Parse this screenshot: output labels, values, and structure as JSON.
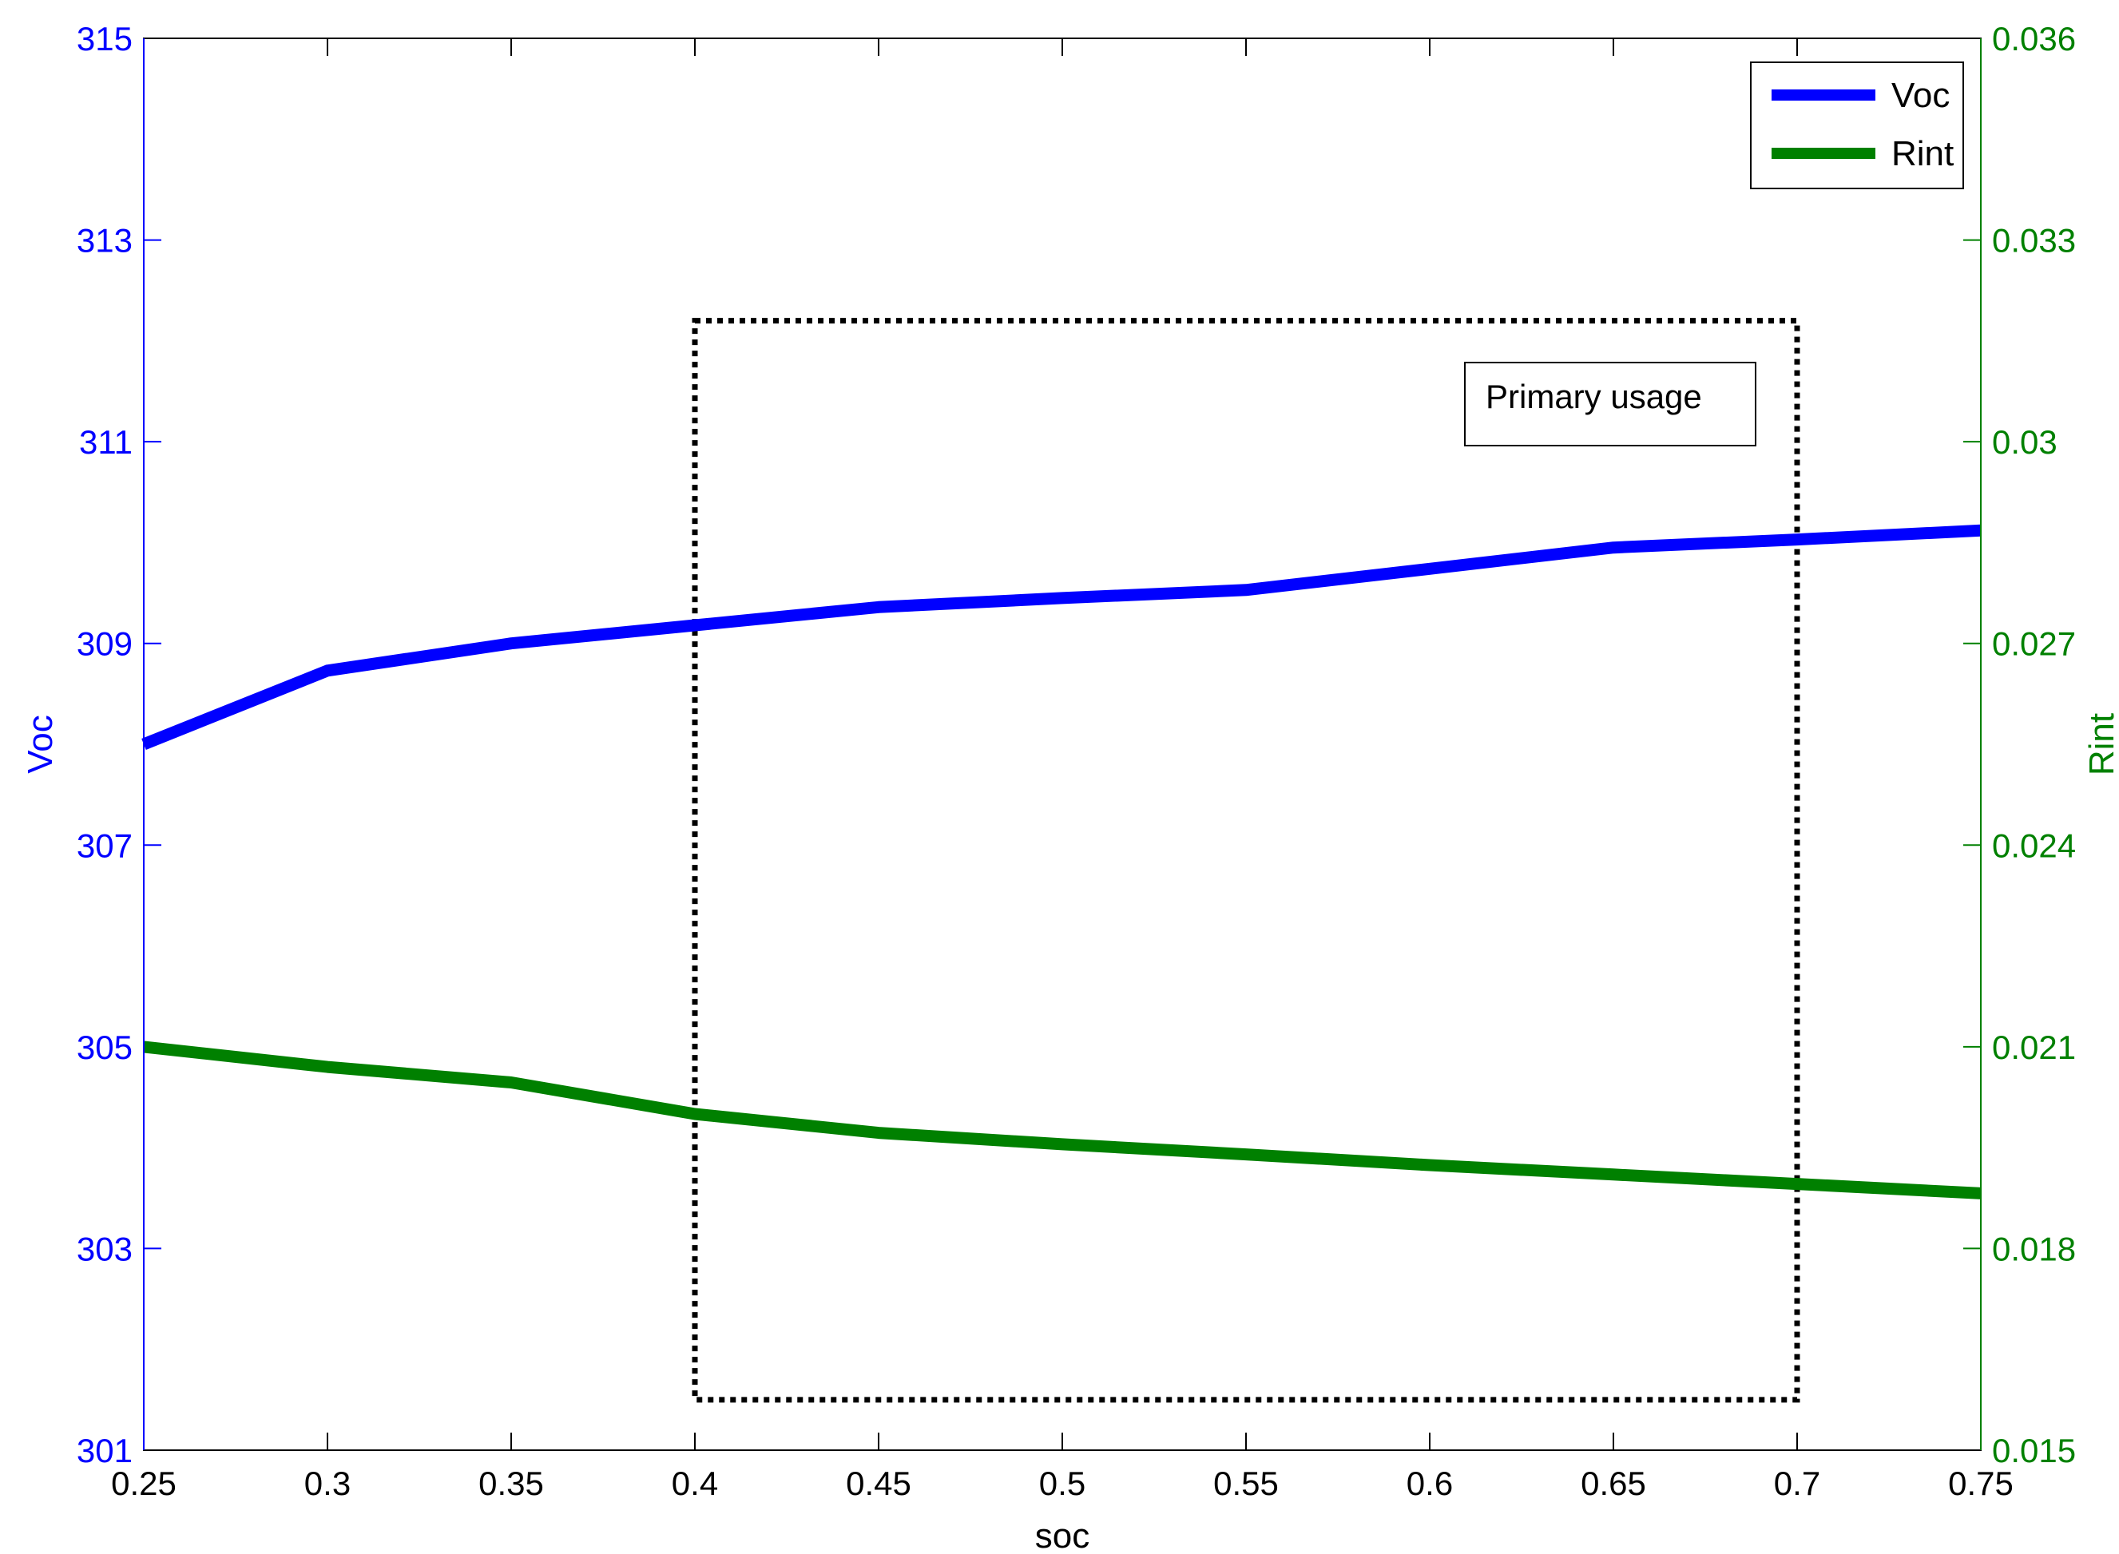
{
  "chart_data": {
    "type": "line",
    "title": "",
    "xlabel": "soc",
    "xlim": [
      0.25,
      0.75
    ],
    "x_ticks": [
      "0.25",
      "0.3",
      "0.35",
      "0.4",
      "0.45",
      "0.5",
      "0.55",
      "0.6",
      "0.65",
      "0.7",
      "0.75"
    ],
    "x_tick_values": [
      0.25,
      0.3,
      0.35,
      0.4,
      0.45,
      0.5,
      0.55,
      0.6,
      0.65,
      0.7,
      0.75
    ],
    "y_left": {
      "label": "Voc",
      "ylim": [
        301,
        315
      ],
      "ticks": [
        "301",
        "303",
        "305",
        "307",
        "309",
        "311",
        "313",
        "315"
      ],
      "tick_values": [
        301,
        303,
        305,
        307,
        309,
        311,
        313,
        315
      ],
      "color": "#0000ff"
    },
    "y_right": {
      "label": "Rint",
      "ylim": [
        0.015,
        0.036
      ],
      "ticks": [
        "0.015",
        "0.018",
        "0.021",
        "0.024",
        "0.027",
        "0.03",
        "0.033",
        "0.036"
      ],
      "tick_values": [
        0.015,
        0.018,
        0.021,
        0.024,
        0.027,
        0.03,
        0.033,
        0.036
      ],
      "color": "#008000"
    },
    "series": [
      {
        "name": "Voc",
        "axis": "left",
        "color": "#0000ff",
        "x": [
          0.25,
          0.3,
          0.35,
          0.4,
          0.45,
          0.5,
          0.55,
          0.6,
          0.65,
          0.7,
          0.75
        ],
        "values": [
          308.0,
          308.73,
          309.0,
          309.18,
          309.36,
          309.45,
          309.53,
          309.74,
          309.95,
          310.03,
          310.12
        ]
      },
      {
        "name": "Rint",
        "axis": "right",
        "color": "#008000",
        "x": [
          0.25,
          0.3,
          0.35,
          0.4,
          0.45,
          0.5,
          0.55,
          0.6,
          0.65,
          0.7,
          0.75
        ],
        "values": [
          0.021,
          0.0207,
          0.02047,
          0.02,
          0.01972,
          0.01955,
          0.0194,
          0.01924,
          0.0191,
          0.01896,
          0.01882
        ]
      }
    ],
    "legend": {
      "placement": "top-right",
      "entries": [
        "Voc",
        "Rint"
      ]
    },
    "annotation": {
      "text": "Primary usage",
      "region_x": [
        0.4,
        0.7
      ],
      "region_y": [
        301.5,
        312.2
      ]
    },
    "grid": false
  }
}
